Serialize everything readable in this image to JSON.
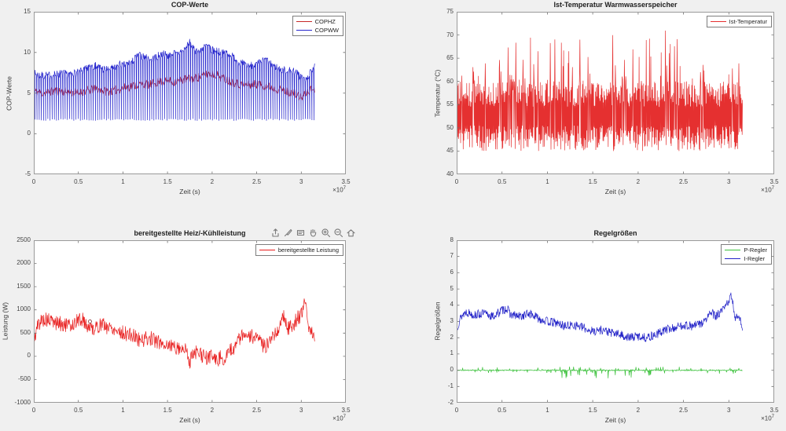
{
  "figure": {
    "background": "#f0f0f0",
    "plot_background": "#ffffff",
    "axes_box_color": "#9a9a9a",
    "tick_color": "#6e6e6e",
    "text_color": "#3c3c3c"
  },
  "toolbar": {
    "icons": [
      {
        "name": "export"
      },
      {
        "name": "brush"
      },
      {
        "name": "datatips"
      },
      {
        "name": "pan"
      },
      {
        "name": "zoom-in"
      },
      {
        "name": "zoom-out"
      },
      {
        "name": "restore-view"
      }
    ]
  },
  "chart_data": [
    {
      "type": "line",
      "title": "COP-Werte",
      "xlabel": "Zeit (s)",
      "ylabel": "COP-Werte",
      "x_multiplier": {
        "base": "×10",
        "exp": "7"
      },
      "x_scale": 10000000,
      "xlim": [
        0,
        3.5
      ],
      "ylim": [
        -5,
        15
      ],
      "xticks": [
        0,
        0.5,
        1,
        1.5,
        2,
        2.5,
        3,
        3.5
      ],
      "yticks": [
        -5,
        0,
        5,
        10,
        15
      ],
      "grid": false,
      "legend_position": "top-right",
      "series": [
        {
          "name": "COPHZ",
          "color": "#c62828",
          "seed": 11,
          "gen": "trend",
          "n": 520,
          "noise": 0.55,
          "prepend": [
            [
              0,
              15
            ],
            [
              0,
              -5
            ]
          ],
          "trend": [
            [
              0,
              5.2
            ],
            [
              0.1,
              5.0
            ],
            [
              0.25,
              5.3
            ],
            [
              0.4,
              5.1
            ],
            [
              0.5,
              5.0
            ],
            [
              0.6,
              5.3
            ],
            [
              0.7,
              5.5
            ],
            [
              0.8,
              5.2
            ],
            [
              0.9,
              5.3
            ],
            [
              1.0,
              5.6
            ],
            [
              1.1,
              5.9
            ],
            [
              1.2,
              6.1
            ],
            [
              1.3,
              6.0
            ],
            [
              1.4,
              6.4
            ],
            [
              1.5,
              6.5
            ],
            [
              1.6,
              6.4
            ],
            [
              1.7,
              6.7
            ],
            [
              1.8,
              6.8
            ],
            [
              1.9,
              7.1
            ],
            [
              1.95,
              7.4
            ],
            [
              2.05,
              7.3
            ],
            [
              2.1,
              6.9
            ],
            [
              2.2,
              6.5
            ],
            [
              2.3,
              6.1
            ],
            [
              2.4,
              6.0
            ],
            [
              2.5,
              6.1
            ],
            [
              2.6,
              5.9
            ],
            [
              2.7,
              5.6
            ],
            [
              2.8,
              5.3
            ],
            [
              2.9,
              5.1
            ],
            [
              3.0,
              4.4
            ],
            [
              3.05,
              5.0
            ],
            [
              3.1,
              5.4
            ],
            [
              3.15,
              5.5
            ]
          ]
        },
        {
          "name": "COPWW",
          "color": "#2626cd",
          "seed": 7,
          "gen": "trend",
          "n": 520,
          "noise": 0.5,
          "dips": {
            "every": 4,
            "to": 1.7,
            "jitter": 0.12
          },
          "trend": [
            [
              0,
              7.4
            ],
            [
              0.1,
              7.1
            ],
            [
              0.2,
              7.2
            ],
            [
              0.3,
              7.4
            ],
            [
              0.4,
              7.3
            ],
            [
              0.5,
              7.5
            ],
            [
              0.6,
              8.0
            ],
            [
              0.65,
              8.5
            ],
            [
              0.7,
              8.3
            ],
            [
              0.8,
              7.9
            ],
            [
              0.9,
              8.0
            ],
            [
              0.95,
              8.6
            ],
            [
              1.0,
              8.3
            ],
            [
              1.1,
              8.9
            ],
            [
              1.15,
              9.4
            ],
            [
              1.2,
              9.6
            ],
            [
              1.3,
              9.1
            ],
            [
              1.35,
              9.3
            ],
            [
              1.45,
              9.9
            ],
            [
              1.5,
              9.6
            ],
            [
              1.55,
              10.0
            ],
            [
              1.6,
              9.8
            ],
            [
              1.7,
              10.4
            ],
            [
              1.75,
              11.2
            ],
            [
              1.8,
              10.3
            ],
            [
              1.85,
              10.1
            ],
            [
              1.9,
              10.6
            ],
            [
              1.95,
              10.8
            ],
            [
              2.0,
              10.2
            ],
            [
              2.05,
              10.4
            ],
            [
              2.1,
              9.8
            ],
            [
              2.15,
              10.0
            ],
            [
              2.2,
              9.9
            ],
            [
              2.25,
              9.3
            ],
            [
              2.3,
              8.8
            ],
            [
              2.4,
              8.4
            ],
            [
              2.5,
              8.5
            ],
            [
              2.55,
              8.8
            ],
            [
              2.6,
              9.1
            ],
            [
              2.65,
              8.6
            ],
            [
              2.7,
              8.4
            ],
            [
              2.75,
              8.0
            ],
            [
              2.8,
              7.9
            ],
            [
              2.85,
              7.7
            ],
            [
              2.9,
              7.8
            ],
            [
              2.95,
              7.4
            ],
            [
              3.0,
              7.0
            ],
            [
              3.05,
              6.6
            ],
            [
              3.08,
              7.2
            ],
            [
              3.1,
              7.4
            ],
            [
              3.15,
              8.6
            ]
          ]
        }
      ]
    },
    {
      "type": "line",
      "title": "Ist-Temperatur Warmwasserspeicher",
      "xlabel": "Zeit (s)",
      "ylabel": "Temperatur (°C)",
      "x_multiplier": {
        "base": "×10",
        "exp": "7"
      },
      "x_scale": 10000000,
      "xlim": [
        0,
        3.5
      ],
      "ylim": [
        40,
        75
      ],
      "xticks": [
        0,
        0.5,
        1,
        1.5,
        2,
        2.5,
        3,
        3.5
      ],
      "yticks": [
        40,
        45,
        50,
        55,
        60,
        65,
        70,
        75
      ],
      "grid": false,
      "legend_position": "top-right",
      "series": [
        {
          "name": "Ist-Temperatur",
          "color": "#e53030",
          "seed": 3,
          "gen": "band",
          "n": 880,
          "band": [
            45,
            60
          ],
          "spike_prob": 0.11,
          "spike_window": [
            0.35,
            2.55
          ],
          "spike_max_in": 11,
          "spike_max_out": 4
        }
      ]
    },
    {
      "type": "line",
      "title": "bereitgestellte Heiz/-Kühlleistung",
      "xlabel": "Zeit (s)",
      "ylabel": "Leistung (W)",
      "x_multiplier": {
        "base": "×10",
        "exp": "7"
      },
      "x_scale": 10000000,
      "xlim": [
        0,
        3.5
      ],
      "ylim": [
        -1000,
        2500
      ],
      "xticks": [
        0,
        0.5,
        1,
        1.5,
        2,
        2.5,
        3,
        3.5
      ],
      "yticks": [
        -1000,
        -500,
        0,
        500,
        1000,
        1500,
        2000,
        2500
      ],
      "grid": false,
      "legend_position": "top-right",
      "marker": {
        "x": 0.63,
        "y": 750
      },
      "series": [
        {
          "name": "bereitgestellte Leistung",
          "color": "#e81e1e",
          "seed": 5,
          "gen": "trend",
          "n": 620,
          "noise": 165,
          "prepend": [
            [
              0,
              2500
            ],
            [
              0,
              -1000
            ]
          ],
          "trend": [
            [
              0,
              350
            ],
            [
              0.05,
              700
            ],
            [
              0.1,
              800
            ],
            [
              0.2,
              750
            ],
            [
              0.3,
              700
            ],
            [
              0.4,
              650
            ],
            [
              0.5,
              780
            ],
            [
              0.55,
              800
            ],
            [
              0.6,
              650
            ],
            [
              0.7,
              600
            ],
            [
              0.75,
              700
            ],
            [
              0.8,
              650
            ],
            [
              0.9,
              600
            ],
            [
              1.0,
              500
            ],
            [
              1.1,
              450
            ],
            [
              1.2,
              350
            ],
            [
              1.3,
              400
            ],
            [
              1.4,
              300
            ],
            [
              1.5,
              250
            ],
            [
              1.6,
              200
            ],
            [
              1.7,
              150
            ],
            [
              1.75,
              -100
            ],
            [
              1.8,
              100
            ],
            [
              1.9,
              0
            ],
            [
              1.95,
              -50
            ],
            [
              2.0,
              50
            ],
            [
              2.05,
              -100
            ],
            [
              2.1,
              0
            ],
            [
              2.15,
              -50
            ],
            [
              2.2,
              100
            ],
            [
              2.25,
              200
            ],
            [
              2.3,
              400
            ],
            [
              2.4,
              450
            ],
            [
              2.5,
              400
            ],
            [
              2.55,
              250
            ],
            [
              2.6,
              200
            ],
            [
              2.65,
              400
            ],
            [
              2.7,
              500
            ],
            [
              2.75,
              600
            ],
            [
              2.8,
              900
            ],
            [
              2.85,
              600
            ],
            [
              2.9,
              650
            ],
            [
              2.95,
              800
            ],
            [
              3.0,
              900
            ],
            [
              3.05,
              1200
            ],
            [
              3.08,
              700
            ],
            [
              3.1,
              500
            ],
            [
              3.12,
              550
            ],
            [
              3.15,
              250
            ]
          ]
        }
      ]
    },
    {
      "type": "line",
      "title": "Regelgrößen",
      "xlabel": "Zeit (s)",
      "ylabel": "Regelgrößen",
      "x_multiplier": {
        "base": "×10",
        "exp": "7"
      },
      "x_scale": 10000000,
      "xlim": [
        0,
        3.5
      ],
      "ylim": [
        -2,
        8
      ],
      "xticks": [
        0,
        0.5,
        1,
        1.5,
        2,
        2.5,
        3,
        3.5
      ],
      "yticks": [
        -2,
        -1,
        0,
        1,
        2,
        3,
        4,
        5,
        6,
        7,
        8
      ],
      "grid": false,
      "legend_position": "top-right",
      "series": [
        {
          "name": "P-Regler",
          "color": "#3cc13c",
          "seed": 9,
          "gen": "spiky",
          "n": 720,
          "base": 0,
          "noise": 0.03,
          "spike_prob": 0.15,
          "spike_amp": 0.22,
          "neg_window": [
            1.1,
            2.2
          ],
          "neg_prob": 0.05,
          "neg_amp": 0.5
        },
        {
          "name": "I-Regler",
          "color": "#2323c8",
          "seed": 13,
          "gen": "trend",
          "n": 720,
          "noise": 0.28,
          "trend": [
            [
              0,
              2.6
            ],
            [
              0.05,
              3.3
            ],
            [
              0.1,
              3.6
            ],
            [
              0.2,
              3.4
            ],
            [
              0.3,
              3.5
            ],
            [
              0.4,
              3.3
            ],
            [
              0.5,
              3.7
            ],
            [
              0.55,
              3.8
            ],
            [
              0.6,
              3.4
            ],
            [
              0.7,
              3.3
            ],
            [
              0.8,
              3.5
            ],
            [
              0.9,
              3.2
            ],
            [
              1.0,
              3.0
            ],
            [
              1.1,
              2.9
            ],
            [
              1.2,
              2.7
            ],
            [
              1.3,
              2.8
            ],
            [
              1.4,
              2.6
            ],
            [
              1.5,
              2.4
            ],
            [
              1.6,
              2.5
            ],
            [
              1.7,
              2.3
            ],
            [
              1.8,
              2.2
            ],
            [
              1.9,
              2.0
            ],
            [
              2.0,
              2.1
            ],
            [
              2.1,
              2.0
            ],
            [
              2.2,
              2.2
            ],
            [
              2.3,
              2.5
            ],
            [
              2.4,
              2.6
            ],
            [
              2.5,
              2.8
            ],
            [
              2.6,
              2.7
            ],
            [
              2.7,
              2.9
            ],
            [
              2.75,
              3.1
            ],
            [
              2.8,
              3.6
            ],
            [
              2.85,
              3.3
            ],
            [
              2.9,
              3.5
            ],
            [
              2.95,
              3.8
            ],
            [
              3.0,
              4.3
            ],
            [
              3.02,
              4.6
            ],
            [
              3.05,
              3.9
            ],
            [
              3.07,
              3.2
            ],
            [
              3.1,
              3.4
            ],
            [
              3.12,
              3.3
            ],
            [
              3.15,
              2.5
            ]
          ]
        }
      ]
    }
  ]
}
